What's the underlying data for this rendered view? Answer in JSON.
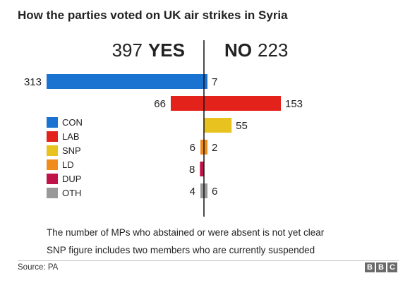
{
  "title": "How the parties voted on UK air strikes in Syria",
  "totals": {
    "yes_number": "397",
    "yes_word": "YES",
    "no_word": "NO",
    "no_number": "223"
  },
  "chart_data": {
    "type": "bar",
    "title": "How the parties voted on UK air strikes in Syria",
    "categories": [
      "CON",
      "LAB",
      "SNP",
      "LD",
      "DUP",
      "OTH"
    ],
    "colors": [
      "#1a73d0",
      "#e3231b",
      "#e8c31f",
      "#f08c1a",
      "#c0134a",
      "#999999"
    ],
    "series": [
      {
        "name": "YES",
        "values": [
          313,
          66,
          0,
          6,
          8,
          4
        ]
      },
      {
        "name": "NO",
        "values": [
          7,
          153,
          55,
          2,
          0,
          6
        ]
      }
    ],
    "totals": {
      "yes": 397,
      "no": 223
    },
    "legend": "left",
    "grid": false
  },
  "notes": [
    "The number of MPs who abstained or were absent is not yet clear",
    "SNP figure includes two members who are currently suspended"
  ],
  "source": "Source: PA",
  "logo": [
    "B",
    "B",
    "C"
  ]
}
